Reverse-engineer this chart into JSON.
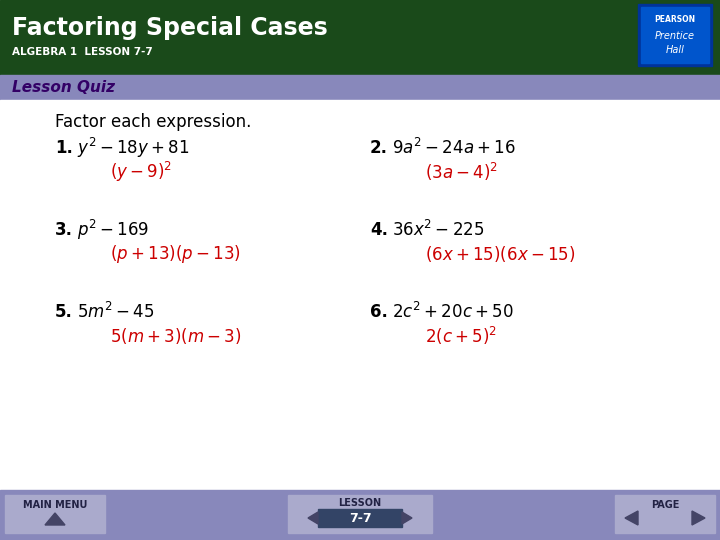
{
  "title": "Factoring Special Cases",
  "subtitle": "ALGEBRA 1  LESSON 7-7",
  "tab_text": "Lesson Quiz",
  "header_bg": "#1a4a1a",
  "tab_bg": "#8888bb",
  "footer_bg": "#8888bb",
  "footer_items": [
    "MAIN MENU",
    "LESSON",
    "PAGE"
  ],
  "lesson_number": "7-7",
  "intro_text": "Factor each expression.",
  "q_color": "#000000",
  "a_color": "#cc0000",
  "white_bg": "#ffffff",
  "pearson_box_outer": "#003399",
  "pearson_box_inner": "#0055cc"
}
